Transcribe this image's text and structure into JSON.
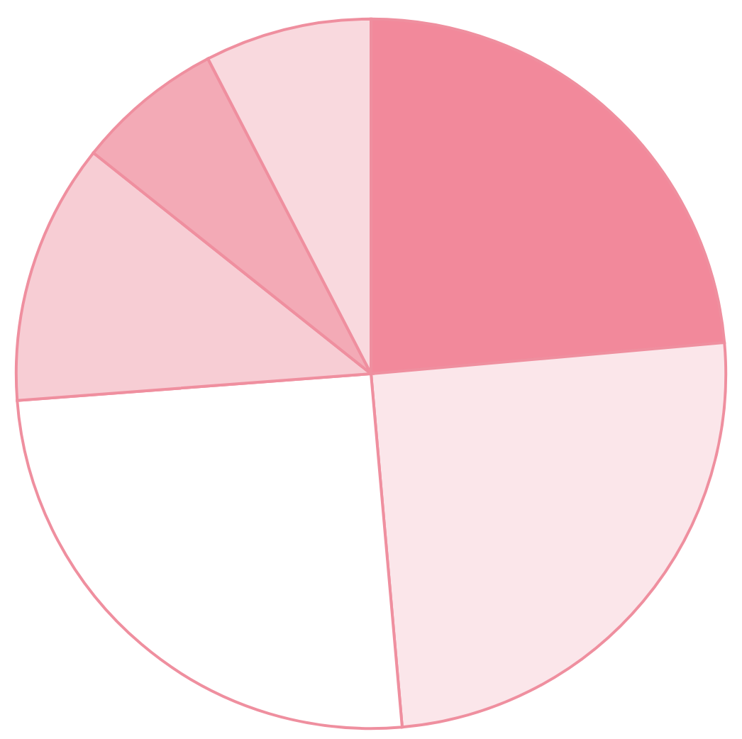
{
  "chart_data": {
    "type": "pie",
    "categories": [
      null,
      null,
      null,
      null,
      null,
      null
    ],
    "values": [
      23.6,
      25,
      25.2,
      11.9,
      6.7,
      7.6
    ],
    "colors": [
      "#f2899b",
      "#fbe6ea",
      "#ffffff",
      "#f7cdd4",
      "#f3aab6",
      "#f9d9de"
    ],
    "legend": false
  }
}
